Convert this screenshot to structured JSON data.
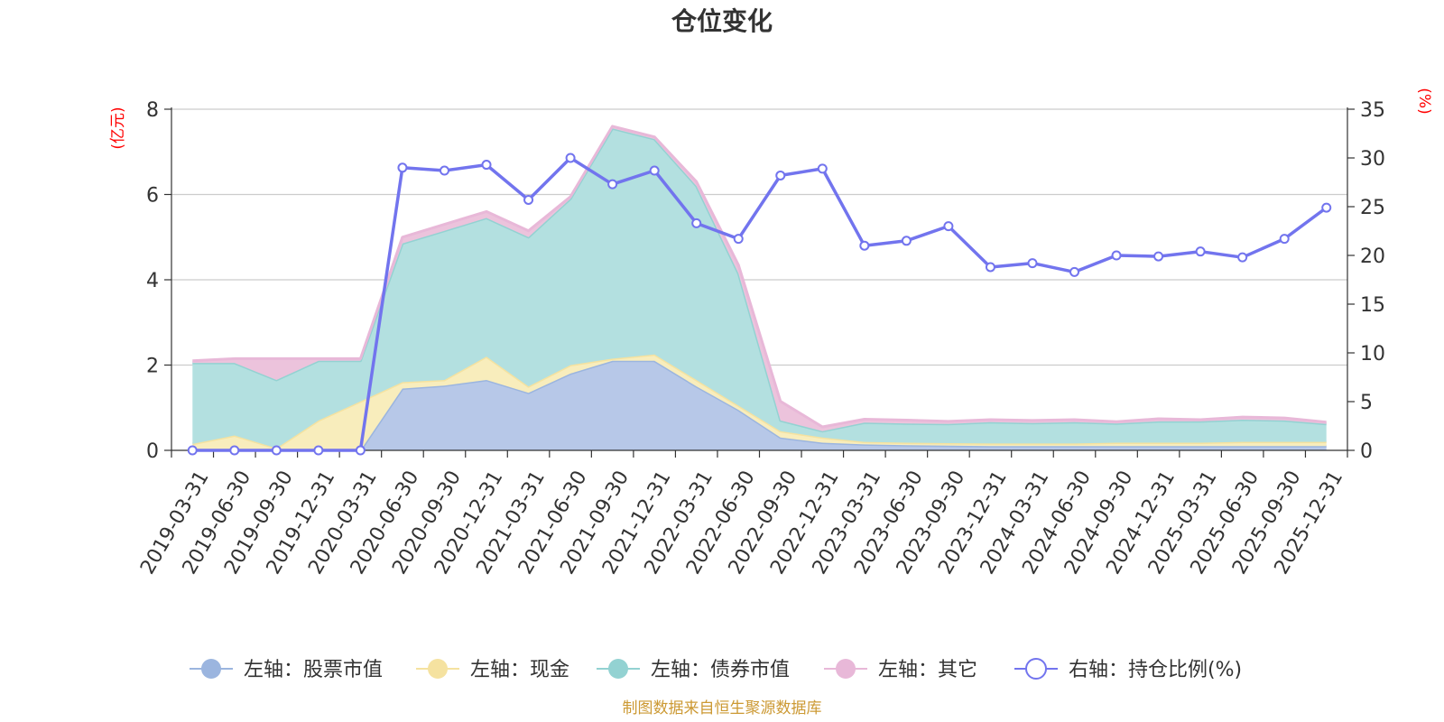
{
  "chart_data": {
    "type": "area",
    "title": "仓位变化",
    "left_axis_unit": "(亿元)",
    "right_axis_unit": "(%)",
    "left_ylim": [
      0,
      8
    ],
    "left_ticks": [
      "0",
      "2",
      "4",
      "6",
      "8"
    ],
    "right_ylim": [
      0,
      35
    ],
    "right_ticks": [
      "0",
      "5",
      "10",
      "15",
      "20",
      "25",
      "30",
      "35"
    ],
    "grid": true,
    "legend_position": "bottom",
    "categories": [
      "2019-03-31",
      "2019-06-30",
      "2019-09-30",
      "2019-12-31",
      "2020-03-31",
      "2020-06-30",
      "2020-09-30",
      "2020-12-31",
      "2021-03-31",
      "2021-06-30",
      "2021-09-30",
      "2021-12-31",
      "2022-03-31",
      "2022-06-30",
      "2022-09-30",
      "2022-12-31",
      "2023-03-31",
      "2023-06-30",
      "2023-09-30",
      "2023-12-31",
      "2024-03-31",
      "2024-06-30",
      "2024-09-30",
      "2024-12-31",
      "2025-03-31",
      "2025-06-30",
      "2025-09-30",
      "2025-12-31"
    ],
    "series": [
      {
        "name": "左轴：股票市值",
        "axis": "left",
        "kind": "stacked-area",
        "color": "#9bb5df",
        "fill": "#b7c8e8",
        "values": [
          0,
          0,
          0,
          0,
          0,
          1.45,
          1.52,
          1.65,
          1.35,
          1.8,
          2.1,
          2.1,
          1.5,
          0.95,
          0.3,
          0.18,
          0.14,
          0.12,
          0.11,
          0.1,
          0.1,
          0.1,
          0.1,
          0.1,
          0.1,
          0.1,
          0.1,
          0.1
        ]
      },
      {
        "name": "左轴：现金",
        "axis": "left",
        "kind": "stacked-area",
        "color": "#f5e2a0",
        "fill": "#f8edbc",
        "values": [
          0.15,
          0.35,
          0.05,
          0.7,
          1.15,
          0.15,
          0.13,
          0.55,
          0.15,
          0.2,
          0.05,
          0.15,
          0.15,
          0.1,
          0.15,
          0.12,
          0.06,
          0.06,
          0.06,
          0.06,
          0.06,
          0.06,
          0.08,
          0.08,
          0.08,
          0.1,
          0.1,
          0.1
        ]
      },
      {
        "name": "左轴：债券市值",
        "axis": "left",
        "kind": "stacked-area",
        "color": "#93d2d2",
        "fill": "#b3e0e0",
        "values": [
          1.9,
          1.7,
          1.6,
          1.4,
          0.95,
          3.25,
          3.5,
          3.25,
          3.5,
          3.9,
          5.4,
          5.05,
          4.55,
          3.1,
          0.25,
          0.15,
          0.45,
          0.45,
          0.45,
          0.5,
          0.48,
          0.5,
          0.45,
          0.5,
          0.5,
          0.52,
          0.5,
          0.42
        ]
      },
      {
        "name": "左轴：其它",
        "axis": "left",
        "kind": "stacked-area",
        "color": "#e8b8d8",
        "fill": "#ecc3dc",
        "values": [
          0.05,
          0.1,
          0.5,
          0.05,
          0.05,
          0.15,
          0.15,
          0.15,
          0.15,
          0.05,
          0.05,
          0.05,
          0.1,
          0.2,
          0.45,
          0.1,
          0.08,
          0.08,
          0.06,
          0.06,
          0.06,
          0.06,
          0.04,
          0.06,
          0.04,
          0.06,
          0.06,
          0.04
        ]
      },
      {
        "name": "右轴：持仓比例(%)",
        "axis": "right",
        "kind": "line",
        "color": "#7274ee",
        "values": [
          0,
          0,
          0,
          0,
          0,
          29.0,
          28.7,
          29.3,
          25.7,
          30.0,
          27.3,
          28.7,
          23.3,
          21.7,
          28.2,
          28.9,
          21.0,
          21.5,
          23.0,
          18.8,
          19.2,
          18.3,
          20.0,
          19.9,
          20.4,
          19.8,
          21.7,
          24.9
        ]
      }
    ],
    "source_note": "制图数据来自恒生聚源数据库"
  }
}
